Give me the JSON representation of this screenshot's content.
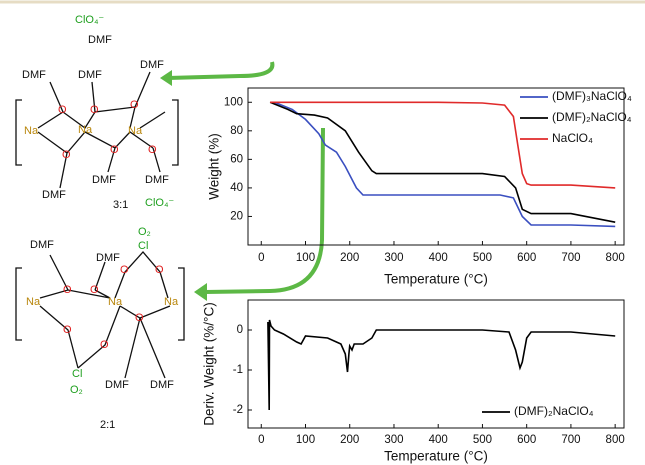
{
  "chart_data": [
    {
      "type": "line",
      "xlabel": "Temperature (°C)",
      "ylabel": "Weight (%)",
      "xlim": [
        -30,
        820
      ],
      "xticks": [
        0,
        100,
        200,
        300,
        400,
        500,
        600,
        700,
        800
      ],
      "ylim": [
        0,
        110
      ],
      "yticks": [
        20,
        40,
        60,
        80,
        100
      ],
      "legend": "upper right",
      "series": [
        {
          "name": "(DMF)₃NaClO₄",
          "color": "#3a4fc0",
          "x": [
            30,
            70,
            100,
            130,
            145,
            170,
            190,
            215,
            230,
            300,
            400,
            540,
            570,
            590,
            610,
            700,
            800
          ],
          "values": [
            100,
            95,
            88,
            78,
            70,
            65,
            55,
            40,
            35,
            35,
            35,
            35,
            33,
            20,
            14,
            14,
            13
          ]
        },
        {
          "name": "(DMF)₂NaClO₄",
          "color": "#000000",
          "x": [
            20,
            60,
            80,
            120,
            150,
            190,
            220,
            250,
            260,
            400,
            500,
            550,
            575,
            590,
            610,
            700,
            800
          ],
          "values": [
            100,
            95,
            92,
            91,
            89,
            80,
            65,
            52,
            50,
            50,
            50,
            48,
            40,
            25,
            22,
            22,
            16
          ]
        },
        {
          "name": "NaClO₄",
          "color": "#e02a2a",
          "x": [
            20,
            100,
            200,
            300,
            400,
            500,
            550,
            570,
            580,
            590,
            600,
            610,
            700,
            800
          ],
          "values": [
            100,
            100,
            100,
            100,
            100,
            99.5,
            98,
            90,
            70,
            50,
            43,
            42,
            42,
            40
          ]
        }
      ]
    },
    {
      "type": "line",
      "xlabel": "Temperature (°C)",
      "ylabel": "Deriv. Weight (%/°C)",
      "xlim": [
        -30,
        820
      ],
      "xticks": [
        0,
        100,
        200,
        300,
        400,
        500,
        600,
        700,
        800
      ],
      "ylim": [
        -2.45,
        0.75
      ],
      "yticks": [
        0,
        -1,
        -2
      ],
      "legend": "lower right",
      "series": [
        {
          "name": "(DMF)₂NaClO₄",
          "color": "#000000",
          "x": [
            15,
            18,
            18.5,
            22,
            30,
            50,
            80,
            90,
            100,
            150,
            180,
            190,
            195,
            198,
            200,
            205,
            210,
            230,
            250,
            260,
            300,
            500,
            560,
            575,
            585,
            590,
            600,
            610,
            700,
            800
          ],
          "values": [
            0.2,
            -2.0,
            0.25,
            0.1,
            0,
            -0.1,
            -0.3,
            -0.35,
            -0.15,
            -0.2,
            -0.35,
            -0.6,
            -1.05,
            -0.6,
            -0.4,
            -0.5,
            -0.35,
            -0.35,
            -0.2,
            0,
            0,
            0,
            -0.05,
            -0.5,
            -0.95,
            -0.8,
            -0.2,
            -0.05,
            -0.05,
            -0.15
          ]
        }
      ]
    }
  ],
  "structures": [
    {
      "labels": [
        "ClO₄⁻",
        "DMF",
        "DMF",
        "DMF",
        "DMF",
        "DMF",
        "DMF",
        "DMF",
        "Na",
        "Na",
        "Na",
        "O",
        "O",
        "O",
        "O",
        "O",
        "O",
        "3:1",
        "ClO₄⁻"
      ]
    },
    {
      "labels": [
        "DMF",
        "DMF",
        "O₂",
        "Cl",
        "Na",
        "Na",
        "Na",
        "O",
        "O",
        "O",
        "O",
        "O",
        "O",
        "O",
        "Cl",
        "O₂",
        "DMF",
        "DMF",
        "2:1"
      ]
    }
  ]
}
